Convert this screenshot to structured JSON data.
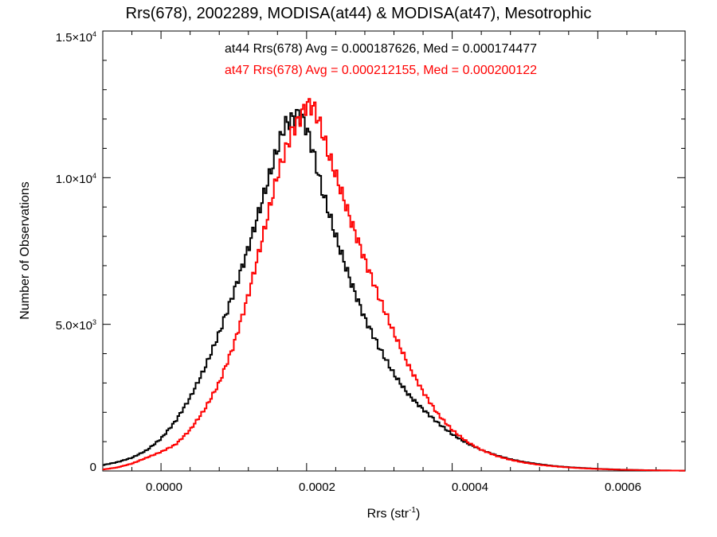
{
  "chart_data": {
    "type": "line",
    "title": "Rrs(678), 2002289, MODISA(at44) & MODISA(at47), Mesotrophic",
    "xlabel_main": "Rrs (str",
    "xlabel_sup": "-1",
    "xlabel_end": ")",
    "ylabel": "Number of Observations",
    "xlim": [
      -8e-05,
      0.00072
    ],
    "ylim": [
      0,
      15000
    ],
    "grid": false,
    "x_ticks": [
      "0.0000",
      "0.0002",
      "0.0004",
      "0.0006"
    ],
    "x_tick_values": [
      0,
      0.0002,
      0.0004,
      0.0006
    ],
    "y_ticks": [
      {
        "value": 0,
        "mant": "0",
        "exp": ""
      },
      {
        "value": 5000,
        "mant": "5.0×10",
        "exp": "3"
      },
      {
        "value": 10000,
        "mant": "1.0×10",
        "exp": "4"
      },
      {
        "value": 15000,
        "mant": "1.5×10",
        "exp": "4"
      }
    ],
    "annotations": [
      {
        "text": "at44 Rrs(678) Avg = 0.000187626, Med = 0.000174477",
        "color": "#000000"
      },
      {
        "text": "at47 Rrs(678) Avg = 0.000212155, Med = 0.000200122",
        "color": "#ff0000"
      }
    ],
    "series": [
      {
        "color": "#000000",
        "points": [
          [
            -8e-05,
            200
          ],
          [
            -6e-05,
            300
          ],
          [
            -4e-05,
            450
          ],
          [
            -2e-05,
            700
          ],
          [
            0.0,
            1100
          ],
          [
            2e-05,
            1700
          ],
          [
            4e-05,
            2500
          ],
          [
            6e-05,
            3500
          ],
          [
            8e-05,
            4700
          ],
          [
            0.0001,
            6100
          ],
          [
            0.00012,
            7600
          ],
          [
            0.00014,
            9300
          ],
          [
            0.00016,
            11000
          ],
          [
            0.00017,
            11800
          ],
          [
            0.00018,
            12000
          ],
          [
            0.00019,
            12200
          ],
          [
            0.0002,
            11700
          ],
          [
            0.00021,
            10800
          ],
          [
            0.00022,
            9700
          ],
          [
            0.00024,
            8000
          ],
          [
            0.00026,
            6500
          ],
          [
            0.00028,
            5200
          ],
          [
            0.0003,
            4200
          ],
          [
            0.00032,
            3300
          ],
          [
            0.00034,
            2600
          ],
          [
            0.00036,
            2100
          ],
          [
            0.00038,
            1650
          ],
          [
            0.0004,
            1250
          ],
          [
            0.00042,
            950
          ],
          [
            0.00044,
            720
          ],
          [
            0.00046,
            540
          ],
          [
            0.00048,
            400
          ],
          [
            0.0005,
            300
          ],
          [
            0.00052,
            230
          ],
          [
            0.00054,
            170
          ],
          [
            0.00056,
            130
          ],
          [
            0.00058,
            100
          ],
          [
            0.0006,
            75
          ],
          [
            0.00062,
            55
          ],
          [
            0.00064,
            40
          ],
          [
            0.00066,
            30
          ],
          [
            0.00068,
            20
          ],
          [
            0.0007,
            15
          ],
          [
            0.00072,
            10
          ]
        ]
      },
      {
        "color": "#ff0000",
        "points": [
          [
            -8e-05,
            50
          ],
          [
            -6e-05,
            120
          ],
          [
            -4e-05,
            250
          ],
          [
            -2e-05,
            450
          ],
          [
            0.0,
            650
          ],
          [
            2e-05,
            900
          ],
          [
            4e-05,
            1400
          ],
          [
            6e-05,
            2100
          ],
          [
            8e-05,
            3000
          ],
          [
            0.0001,
            4300
          ],
          [
            0.00012,
            6000
          ],
          [
            0.00014,
            8000
          ],
          [
            0.00016,
            10100
          ],
          [
            0.00018,
            11600
          ],
          [
            0.00019,
            12000
          ],
          [
            0.0002,
            12500
          ],
          [
            0.00021,
            12400
          ],
          [
            0.00022,
            11700
          ],
          [
            0.00023,
            10800
          ],
          [
            0.00024,
            10100
          ],
          [
            0.00026,
            8600
          ],
          [
            0.00028,
            7200
          ],
          [
            0.0003,
            5900
          ],
          [
            0.00032,
            4700
          ],
          [
            0.00034,
            3600
          ],
          [
            0.00036,
            2700
          ],
          [
            0.00038,
            1950
          ],
          [
            0.0004,
            1400
          ],
          [
            0.00042,
            1000
          ],
          [
            0.00044,
            720
          ],
          [
            0.00046,
            520
          ],
          [
            0.00048,
            380
          ],
          [
            0.0005,
            280
          ],
          [
            0.00052,
            210
          ],
          [
            0.00054,
            160
          ],
          [
            0.00056,
            120
          ],
          [
            0.00058,
            90
          ],
          [
            0.0006,
            70
          ],
          [
            0.00062,
            50
          ],
          [
            0.00064,
            38
          ],
          [
            0.00066,
            28
          ],
          [
            0.00068,
            20
          ],
          [
            0.0007,
            14
          ],
          [
            0.00072,
            10
          ]
        ]
      }
    ]
  }
}
